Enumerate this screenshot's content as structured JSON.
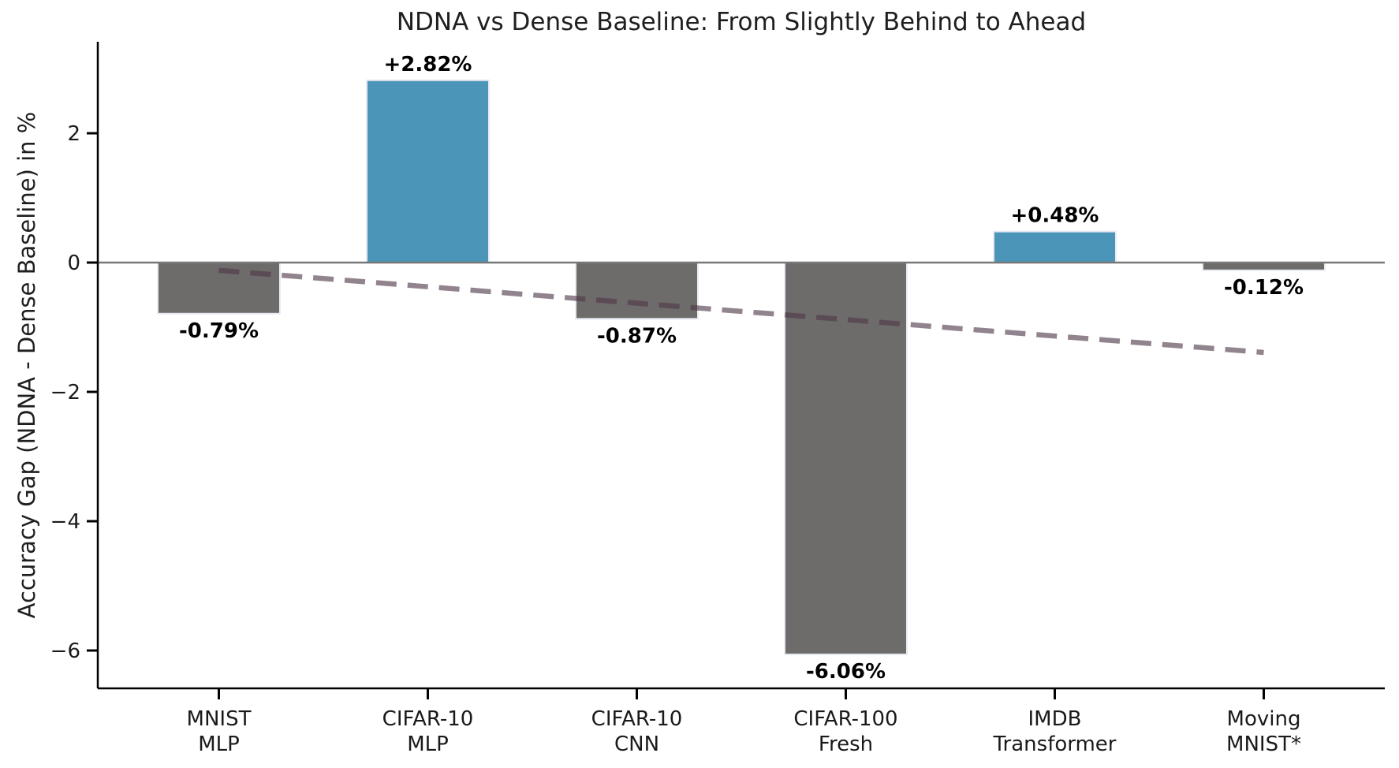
{
  "chart_data": {
    "type": "bar",
    "title": "NDNA vs Dense Baseline: From Slightly Behind to Ahead",
    "ylabel": "Accuracy Gap (NDNA - Dense Baseline) in %",
    "xlabel": "",
    "categories": [
      [
        "MNIST",
        "MLP"
      ],
      [
        "CIFAR-10",
        "MLP"
      ],
      [
        "CIFAR-10",
        "CNN"
      ],
      [
        "CIFAR-100",
        "Fresh"
      ],
      [
        "IMDB",
        "Transformer"
      ],
      [
        "Moving",
        "MNIST*"
      ]
    ],
    "values": [
      -0.79,
      2.82,
      -0.87,
      -6.06,
      0.48,
      -0.12
    ],
    "value_labels": [
      "-0.79%",
      "+2.82%",
      "-0.87%",
      "-6.06%",
      "+0.48%",
      "-0.12%"
    ],
    "bar_colors": [
      "#6e6b6b",
      "#4b96b8",
      "#6e6b6b",
      "#6e6b6b",
      "#4b96b8",
      "#6e6b6b"
    ],
    "colors": {
      "positive_bar": "#4b96b8",
      "negative_bar": "#6e6b6b",
      "bar_edge": "#e9ebf3",
      "zero_line": "#787878",
      "trend_line": "#4f3848",
      "axis": "#000000",
      "text": "#1a1a1a"
    },
    "yticks": {
      "values": [
        2,
        0,
        -2,
        -4,
        -6
      ],
      "labels": [
        "2",
        "0",
        "−2",
        "−4",
        "−6"
      ]
    },
    "ylim": [
      -6.59,
      3.41
    ],
    "grid": false,
    "legend": "none",
    "trend": {
      "description": "dashed declining trend line across category centers",
      "start_category_index": 0,
      "end_category_index": 5,
      "start_value": -0.12,
      "end_value": -1.39,
      "opacity": 0.62
    }
  }
}
